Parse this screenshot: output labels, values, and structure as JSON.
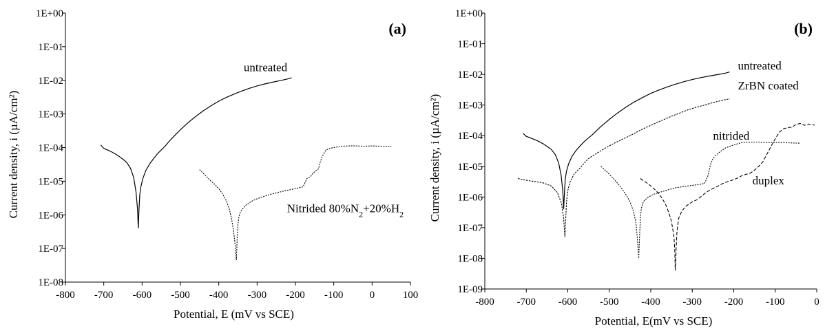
{
  "chart_data": [
    {
      "type": "line",
      "panel_label": "(a)",
      "xlabel": "Potential, E (mV vs SCE)",
      "ylabel": "Current density, i (µA/cm²)",
      "xlim": [
        -800,
        100
      ],
      "ylim": [
        1e-08,
        1
      ],
      "yscale": "log",
      "x_ticks": [
        "-800",
        "-700",
        "-600",
        "-500",
        "-400",
        "-300",
        "-200",
        "-100",
        "0",
        "100"
      ],
      "y_ticks": [
        "1E-08",
        "1E-07",
        "1E-06",
        "1E-05",
        "1E-04",
        "1E-03",
        "1E-02",
        "1E-01",
        "1E+00"
      ],
      "grid": false,
      "series": [
        {
          "label": "untreated",
          "label_at": [
            -335,
            0.0185
          ],
          "style": "solid",
          "x": [
            -708,
            -700,
            -690,
            -680,
            -670,
            -660,
            -650,
            -640,
            -630,
            -622,
            -616,
            -612,
            -610,
            -608,
            -606,
            -603,
            -598,
            -590,
            -580,
            -570,
            -560,
            -550,
            -540,
            -530,
            -520,
            -510,
            -500,
            -480,
            -460,
            -440,
            -420,
            -400,
            -380,
            -360,
            -340,
            -320,
            -300,
            -280,
            -260,
            -240,
            -220,
            -210
          ],
          "y": [
            0.00012,
            9.5e-05,
            8.5e-05,
            7.5e-05,
            6.5e-05,
            5.5e-05,
            4.5e-05,
            3.6e-05,
            2.4e-05,
            1.3e-05,
            5e-06,
            1.5e-06,
            4e-07,
            1.5e-06,
            4e-06,
            7e-06,
            1.2e-05,
            2.1e-05,
            3.3e-05,
            4.7e-05,
            6.5e-05,
            8.5e-05,
            0.00011,
            0.00015,
            0.0002,
            0.00026,
            0.00034,
            0.00055,
            0.00085,
            0.00125,
            0.00175,
            0.0024,
            0.0031,
            0.0039,
            0.0048,
            0.0058,
            0.0068,
            0.0078,
            0.0088,
            0.0098,
            0.011,
            0.012
          ]
        },
        {
          "label": "Nitrided 80%N₂+20%H₂",
          "label_at": [
            -222,
            1.2e-06
          ],
          "style": "dotted",
          "x": [
            -450,
            -440,
            -430,
            -420,
            -410,
            -400,
            -390,
            -380,
            -372,
            -366,
            -361,
            -357,
            -354,
            -352,
            -350,
            -348,
            -345,
            -340,
            -330,
            -320,
            -310,
            -300,
            -290,
            -280,
            -270,
            -260,
            -250,
            -240,
            -230,
            -220,
            -210,
            -200,
            -190,
            -180,
            -175,
            -170,
            -165,
            -160,
            -155,
            -150,
            -145,
            -140,
            -135,
            -130,
            -125,
            -120,
            -110,
            -100,
            -90,
            -80,
            -60,
            -40,
            -20,
            0,
            20,
            50
          ],
          "y": [
            2.2e-05,
            1.7e-05,
            1.3e-05,
            1e-05,
            8e-06,
            6e-06,
            4.2e-06,
            2.6e-06,
            1.4e-06,
            7e-07,
            3e-07,
            1.2e-07,
            4.5e-08,
            2e-07,
            5e-07,
            8e-07,
            1.1e-06,
            1.4e-06,
            1.9e-06,
            2.3e-06,
            2.7e-06,
            3e-06,
            3.3e-06,
            3.6e-06,
            3.9e-06,
            4.2e-06,
            4.5e-06,
            4.8e-06,
            5.1e-06,
            5.4e-06,
            5.7e-06,
            6e-06,
            6.4e-06,
            6.8e-06,
            9e-06,
            1.2e-05,
            1.3e-05,
            1.4e-05,
            1.7e-05,
            1.9e-05,
            2.1e-05,
            2.3e-05,
            3.8e-05,
            5.5e-05,
            7e-05,
            8.5e-05,
            9.5e-05,
            0.0001,
            0.000105,
            0.00011,
            0.000112,
            0.000112,
            0.00011,
            0.000112,
            0.00011,
            0.00011
          ]
        }
      ]
    },
    {
      "type": "line",
      "panel_label": "(b)",
      "xlabel": "Potential, E(mV vs SCE)",
      "ylabel": "Current density, i (µA/cm²)",
      "xlim": [
        -800,
        0
      ],
      "ylim": [
        1e-09,
        1
      ],
      "yscale": "log",
      "x_ticks": [
        "-800",
        "-700",
        "-600",
        "-500",
        "-400",
        "-300",
        "-200",
        "-100",
        "0"
      ],
      "y_ticks": [
        "1E-09",
        "1E-08",
        "1E-07",
        "1E-06",
        "1E-05",
        "1E-04",
        "1E-03",
        "1E-02",
        "1E-01",
        "1E+00"
      ],
      "grid": false,
      "series": [
        {
          "label": "untreated",
          "label_at": [
            -190,
            0.0145
          ],
          "style": "solid",
          "x": [
            -708,
            -700,
            -690,
            -680,
            -670,
            -660,
            -650,
            -640,
            -630,
            -622,
            -616,
            -612,
            -610,
            -608,
            -606,
            -603,
            -598,
            -590,
            -580,
            -570,
            -560,
            -550,
            -540,
            -530,
            -520,
            -510,
            -500,
            -480,
            -460,
            -440,
            -420,
            -400,
            -380,
            -360,
            -340,
            -320,
            -300,
            -280,
            -260,
            -240,
            -220,
            -210
          ],
          "y": [
            0.00012,
            9.5e-05,
            8.5e-05,
            7.5e-05,
            6.5e-05,
            5.5e-05,
            4.5e-05,
            3.6e-05,
            2.4e-05,
            1.3e-05,
            5e-06,
            1.5e-06,
            4e-07,
            1.5e-06,
            4e-06,
            7e-06,
            1.2e-05,
            2.1e-05,
            3.3e-05,
            4.7e-05,
            6.5e-05,
            8.5e-05,
            0.00011,
            0.00015,
            0.0002,
            0.00026,
            0.00034,
            0.00055,
            0.00085,
            0.00125,
            0.00175,
            0.0024,
            0.0031,
            0.0039,
            0.0048,
            0.0058,
            0.0068,
            0.0078,
            0.0088,
            0.0098,
            0.011,
            0.012
          ]
        },
        {
          "label": "ZrBN coated",
          "label_at": [
            -190,
            0.0032
          ],
          "style": "dashed-fine",
          "x": [
            -720,
            -700,
            -680,
            -660,
            -640,
            -625,
            -615,
            -610,
            -607,
            -605,
            -603,
            -600,
            -595,
            -585,
            -570,
            -560,
            -550,
            -530,
            -510,
            -490,
            -470,
            -450,
            -430,
            -410,
            -390,
            -370,
            -350,
            -330,
            -310,
            -290,
            -270,
            -250,
            -230,
            -210
          ],
          "y": [
            4e-06,
            3.5e-06,
            3.2e-06,
            2.9e-06,
            2.3e-06,
            1.4e-06,
            6e-07,
            2e-07,
            5e-08,
            2e-07,
            7e-07,
            1.6e-06,
            3e-06,
            5.5e-06,
            9e-06,
            1.3e-05,
            1.8e-05,
            2.7e-05,
            3.9e-05,
            5.5e-05,
            7.5e-05,
            0.0001,
            0.00014,
            0.00019,
            0.00025,
            0.00033,
            0.00043,
            0.00055,
            0.0007,
            0.00085,
            0.001,
            0.0012,
            0.0014,
            0.0016
          ]
        },
        {
          "label": "nitrided",
          "label_at": [
            -250,
            7.5e-05
          ],
          "style": "dotted",
          "x": [
            -520,
            -510,
            -500,
            -490,
            -480,
            -470,
            -460,
            -450,
            -442,
            -436,
            -432,
            -429,
            -427,
            -425,
            -423,
            -420,
            -415,
            -405,
            -395,
            -380,
            -360,
            -340,
            -320,
            -300,
            -280,
            -270,
            -262,
            -258,
            -255,
            -250,
            -245,
            -240,
            -230,
            -220,
            -200,
            -180,
            -160,
            -140,
            -120,
            -100,
            -80,
            -60,
            -40
          ],
          "y": [
            1e-05,
            7.5e-06,
            5.5e-06,
            4e-06,
            2.8e-06,
            1.9e-06,
            1.2e-06,
            7e-07,
            3.5e-07,
            1.5e-07,
            4e-08,
            1e-08,
            5e-08,
            2e-07,
            4e-07,
            6e-07,
            8e-07,
            1e-06,
            1.2e-06,
            1.4e-06,
            1.7e-06,
            2e-06,
            2.2e-06,
            2.4e-06,
            2.6e-06,
            2.8e-06,
            5e-06,
            9e-06,
            1.3e-05,
            1.8e-05,
            2.2e-05,
            2.5e-05,
            3.2e-05,
            4e-05,
            5e-05,
            6e-05,
            6.2e-05,
            6.2e-05,
            6e-05,
            6e-05,
            6e-05,
            5.8e-05,
            5.7e-05
          ]
        },
        {
          "label": "duplex",
          "label_at": [
            -155,
            2.6e-06
          ],
          "style": "dashed",
          "x": [
            -425,
            -415,
            -405,
            -395,
            -385,
            -375,
            -365,
            -358,
            -352,
            -348,
            -344,
            -342,
            -341,
            -340,
            -339,
            -337,
            -333,
            -325,
            -315,
            -300,
            -290,
            -280,
            -270,
            -260,
            -250,
            -240,
            -230,
            -220,
            -210,
            -200,
            -190,
            -180,
            -170,
            -160,
            -150,
            -140,
            -130,
            -120,
            -110,
            -100,
            -90,
            -80,
            -70,
            -60,
            -50,
            -40,
            -30,
            -20,
            -10,
            -5
          ],
          "y": [
            4e-06,
            3.2e-06,
            2.6e-06,
            2e-06,
            1.5e-06,
            1e-06,
            6e-07,
            3.5e-07,
            2e-07,
            1.1e-07,
            5e-08,
            1.8e-08,
            4e-09,
            6e-09,
            2e-08,
            7e-08,
            2e-07,
            3.5e-07,
            5e-07,
            7e-07,
            8e-07,
            1e-06,
            1.3e-06,
            1.6e-06,
            1.9e-06,
            2.2e-06,
            2.6e-06,
            3e-06,
            3.3e-06,
            3.7e-06,
            4.2e-06,
            5e-06,
            5.5e-06,
            6e-06,
            7.5e-06,
            1e-05,
            1.4e-05,
            2.5e-05,
            4.5e-05,
            8e-05,
            0.00013,
            0.00017,
            0.00018,
            0.00019,
            0.00023,
            0.00025,
            0.00022,
            0.00024,
            0.00023,
            0.00022
          ]
        }
      ]
    }
  ]
}
